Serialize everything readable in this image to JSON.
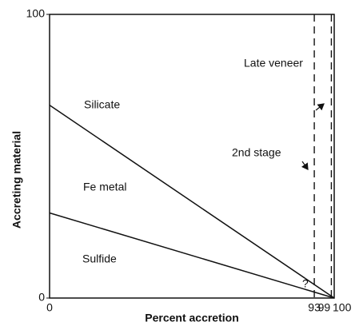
{
  "chart_data": {
    "type": "line",
    "x_label": "Percent accretion",
    "y_label": "Accreting material",
    "x": [
      0,
      100
    ],
    "series": [
      {
        "color": "#111111",
        "values": [
          68,
          0
        ]
      },
      {
        "color": "#111111",
        "values": [
          30,
          0
        ]
      }
    ],
    "xlim": [
      0,
      100
    ],
    "xticks": [
      0,
      93,
      99,
      100
    ],
    "ylim": [
      0,
      100
    ],
    "yticks": [
      0,
      100
    ],
    "grid": "dashed",
    "annotations": [
      "Silicate",
      "Fe metal",
      "Sulfide",
      "2nd stage",
      "Late veneer",
      "?"
    ]
  }
}
